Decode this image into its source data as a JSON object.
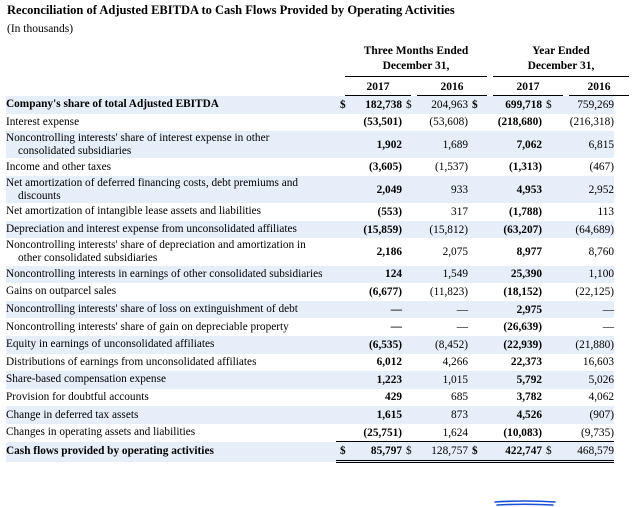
{
  "title": "Reconciliation of Adjusted EBITDA to Cash Flows Provided by Operating Activities",
  "subtitle": "(In thousands)",
  "headers": {
    "group1_line1": "Three Months Ended",
    "group1_line2": "December 31,",
    "group2_line1": "Year Ended",
    "group2_line2": "December 31,",
    "years": [
      "2017",
      "2016",
      "2017",
      "2016"
    ]
  },
  "currency_symbol": "$",
  "rows": [
    {
      "label": "Company's share of total Adjusted EBITDA",
      "values": [
        "182,738",
        "204,963",
        "699,718",
        "759,269"
      ]
    },
    {
      "label": "Interest expense",
      "values": [
        "(53,501)",
        "(53,608)",
        "(218,680)",
        "(216,318)"
      ]
    },
    {
      "label": "Noncontrolling interests' share of interest expense in other",
      "label2": "consolidated subsidiaries",
      "values": [
        "1,902",
        "1,689",
        "7,062",
        "6,815"
      ]
    },
    {
      "label": "Income and other taxes",
      "values": [
        "(3,605)",
        "(1,537)",
        "(1,313)",
        "(467)"
      ]
    },
    {
      "label": "Net amortization of deferred financing costs, debt premiums and",
      "label2": "discounts",
      "values": [
        "2,049",
        "933",
        "4,953",
        "2,952"
      ]
    },
    {
      "label": "Net amortization of intangible lease assets and liabilities",
      "values": [
        "(553)",
        "317",
        "(1,788)",
        "113"
      ]
    },
    {
      "label": "Depreciation and interest expense from unconsolidated affiliates",
      "values": [
        "(15,859)",
        "(15,812)",
        "(63,207)",
        "(64,689)"
      ]
    },
    {
      "label": "Noncontrolling interests' share of depreciation and amortization in",
      "label2": "other consolidated subsidiaries",
      "values": [
        "2,186",
        "2,075",
        "8,977",
        "8,760"
      ]
    },
    {
      "label": "Noncontrolling interests in earnings of other consolidated subsidiaries",
      "values": [
        "124",
        "1,549",
        "25,390",
        "1,100"
      ]
    },
    {
      "label": "Gains on outparcel sales",
      "values": [
        "(6,677)",
        "(11,823)",
        "(18,152)",
        "(22,125)"
      ]
    },
    {
      "label": "Noncontrolling interests' share of loss on extinguishment of debt",
      "values": [
        "—",
        "—",
        "2,975",
        "—"
      ]
    },
    {
      "label": "Noncontrolling interests' share of gain on depreciable property",
      "values": [
        "—",
        "—",
        "(26,639)",
        "—"
      ]
    },
    {
      "label": "Equity in earnings of unconsolidated affiliates",
      "values": [
        "(6,535)",
        "(8,452)",
        "(22,939)",
        "(21,880)"
      ]
    },
    {
      "label": "Distributions of earnings from unconsolidated affiliates",
      "values": [
        "6,012",
        "4,266",
        "22,373",
        "16,603"
      ]
    },
    {
      "label": "Share-based compensation expense",
      "values": [
        "1,223",
        "1,015",
        "5,792",
        "5,026"
      ]
    },
    {
      "label": "Provision for doubtful accounts",
      "values": [
        "429",
        "685",
        "3,782",
        "4,062"
      ]
    },
    {
      "label": "Change in deferred tax assets",
      "values": [
        "1,615",
        "873",
        "4,526",
        "(907)"
      ]
    },
    {
      "label": "Changes in operating assets and liabilities",
      "values": [
        "(25,751)",
        "1,624",
        "(10,083)",
        "(9,735)"
      ]
    },
    {
      "label": "Cash flows provided by operating activities",
      "values": [
        "85,797",
        "128,757",
        "422,747",
        "468,579"
      ]
    }
  ],
  "colors": {
    "row_shade": "#e6eef9",
    "annotation": "#1a4fd6"
  }
}
